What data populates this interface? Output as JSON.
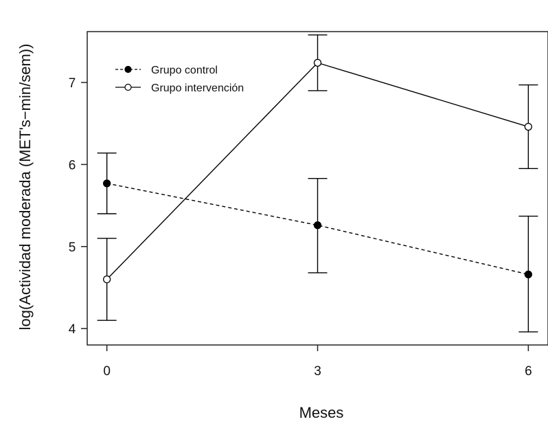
{
  "chart_data": {
    "type": "line",
    "xlabel": "Meses",
    "ylabel": "log(Actividad moderada (MET's−min/sem))",
    "x": [
      0,
      3,
      6
    ],
    "x_ticks": [
      "0",
      "3",
      "6"
    ],
    "y_ticks": [
      "4",
      "5",
      "6",
      "7"
    ],
    "xlim": [
      -0.28,
      6.28
    ],
    "ylim": [
      3.8,
      7.62
    ],
    "grid": false,
    "legend_position": "top-left",
    "series": [
      {
        "name": "Grupo control",
        "values": [
          5.77,
          5.26,
          4.66
        ],
        "error_low": [
          5.4,
          4.68,
          3.96
        ],
        "error_high": [
          6.14,
          5.83,
          5.37
        ],
        "line_style": "dashed",
        "marker": "filled-circle",
        "color": "#000000"
      },
      {
        "name": "Grupo intervención",
        "values": [
          4.6,
          7.24,
          6.46
        ],
        "error_low": [
          4.1,
          6.9,
          5.95
        ],
        "error_high": [
          5.1,
          7.58,
          6.97
        ],
        "line_style": "solid",
        "marker": "open-circle",
        "color": "#000000"
      }
    ]
  }
}
